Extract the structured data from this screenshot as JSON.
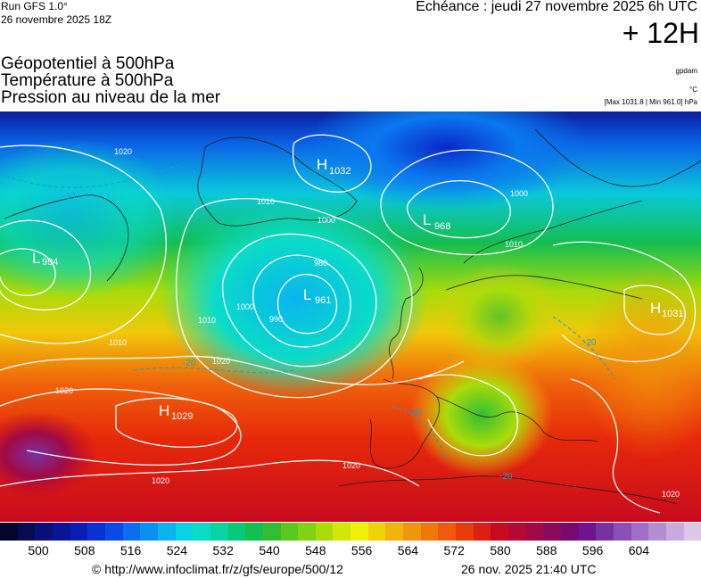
{
  "header": {
    "run": "Run GFS 1.0°",
    "run_date": "26 novembre 2025 18Z",
    "echeance": "Echéance : jeudi 27 novembre 2025 6h UTC",
    "horizon": "+ 12H",
    "field_1": "Géopotentiel à 500hPa",
    "field_2": "Température à 500hPa",
    "field_3": "Pression au niveau de la mer",
    "unit_gpdam": "gpdam",
    "unit_temp": "°C",
    "maxmin": "[Max 1031.8 | Min 961.0] hPa"
  },
  "pressure_centers": [
    {
      "type": "H",
      "value": "1032"
    },
    {
      "type": "L",
      "value": "968"
    },
    {
      "type": "L",
      "value": "994"
    },
    {
      "type": "L",
      "value": "961"
    },
    {
      "type": "H",
      "value": "1031"
    },
    {
      "type": "H",
      "value": "1029"
    }
  ],
  "isobar_labels": [
    "1020",
    "1010",
    "1000",
    "990",
    "980",
    "1000",
    "1010",
    "1020",
    "1020",
    "1010",
    "1020",
    "1020",
    "1020",
    "1000",
    "1010"
  ],
  "temperature_labels": [
    "-30",
    "-20",
    "-20",
    "-20",
    "-20"
  ],
  "scale": {
    "colors": [
      "#05052a",
      "#0a0a52",
      "#0a0f78",
      "#0a1496",
      "#0a1eb4",
      "#0a32d2",
      "#0a4be6",
      "#0a6eee",
      "#0a91ee",
      "#0ab4ee",
      "#0ad2e6",
      "#0adcc8",
      "#0ad2a0",
      "#0ac878",
      "#14be50",
      "#32be32",
      "#5ac81e",
      "#82d214",
      "#aadc0a",
      "#d2e60a",
      "#f0f00a",
      "#f0d20a",
      "#f0b40a",
      "#f0960a",
      "#f0780a",
      "#f05a0a",
      "#e63c0a",
      "#dc1e14",
      "#c80a1e",
      "#b40a32",
      "#a00a46",
      "#8c0a5a",
      "#780a6e",
      "#6e148c",
      "#7832a0",
      "#8c50b4",
      "#a06ec8",
      "#b48cd2",
      "#c8aadc",
      "#dcc8e6"
    ],
    "ticks": [
      "500",
      "508",
      "516",
      "524",
      "532",
      "540",
      "548",
      "556",
      "564",
      "572",
      "580",
      "588",
      "596",
      "604"
    ]
  },
  "footer": {
    "copyright": "© http://www.infoclimat.fr/z/gfs/europe/500/12",
    "generated": "26 nov. 2025 21:40 UTC"
  }
}
